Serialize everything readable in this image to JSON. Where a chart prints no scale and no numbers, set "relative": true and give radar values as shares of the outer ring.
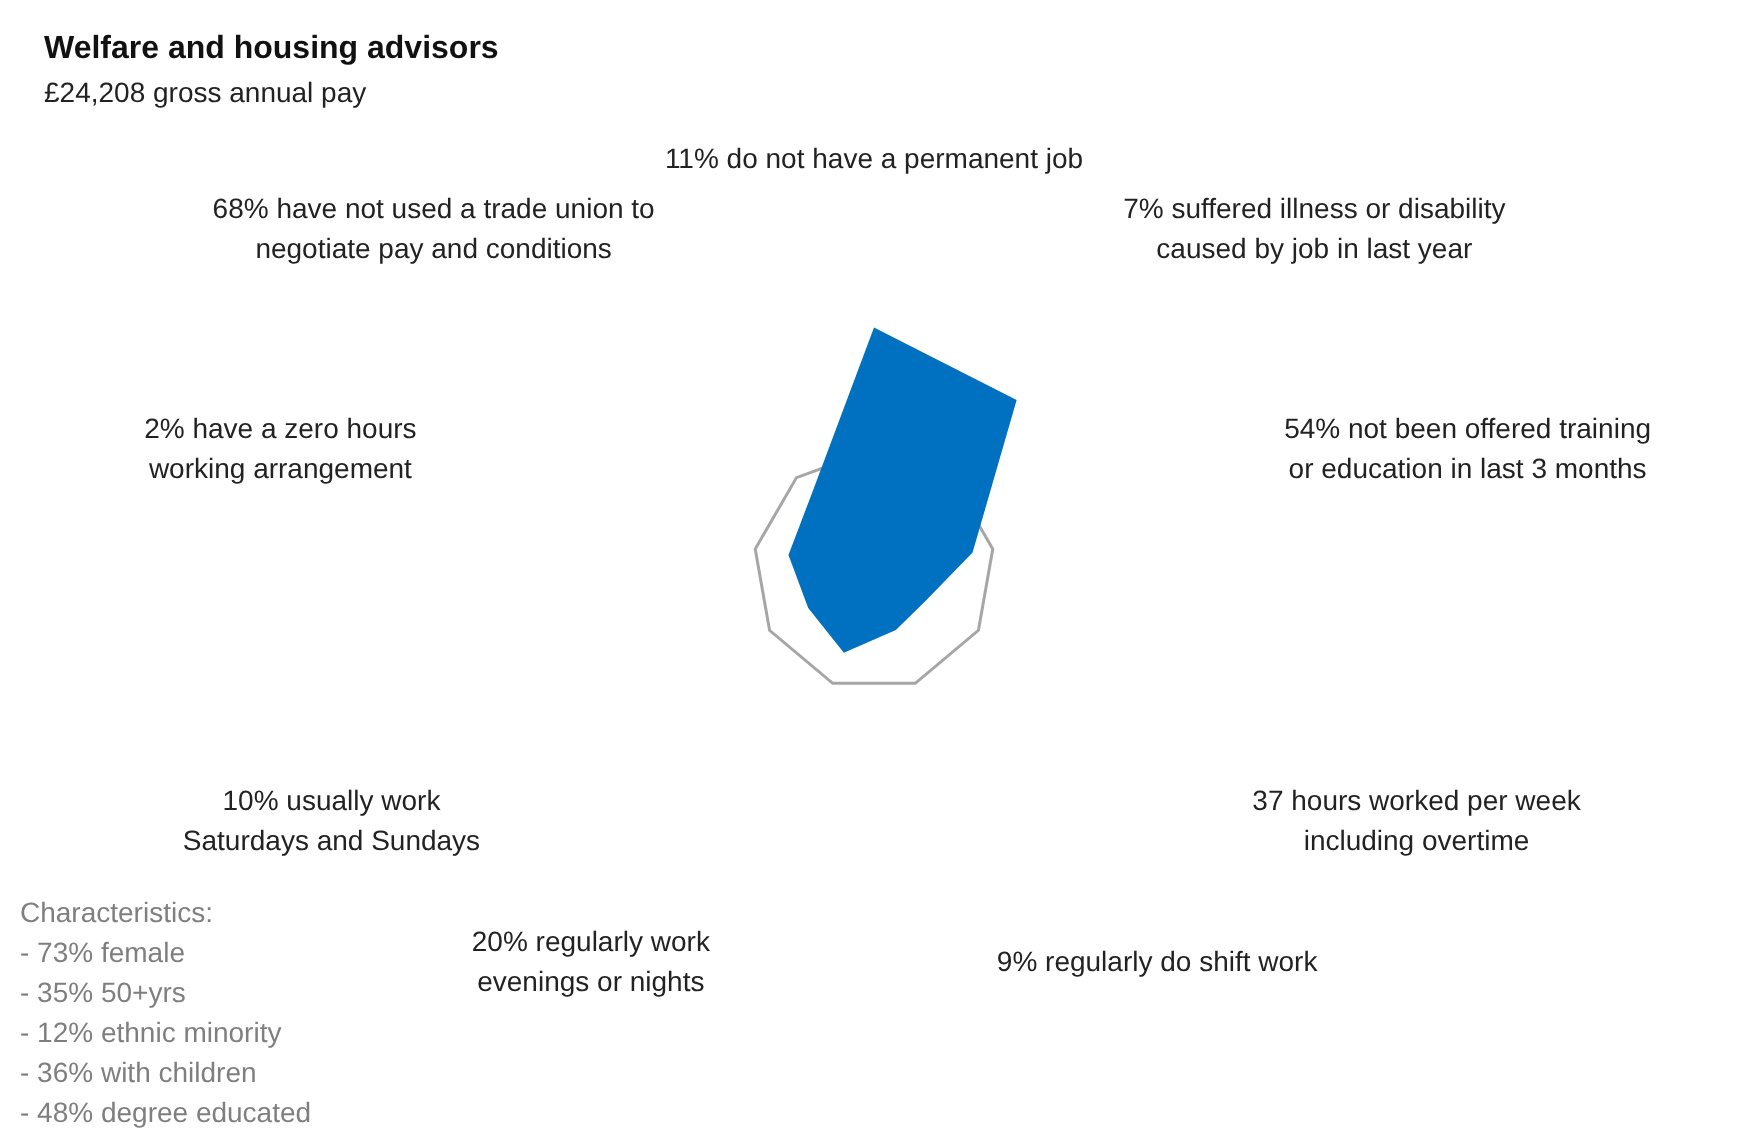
{
  "chart_data": {
    "type": "radar",
    "title": "Welfare and housing advisors",
    "subtitle": "£24,208 gross annual pay",
    "relative": true,
    "legend": false,
    "categories": [
      "11% do not have a permanent job",
      "7% suffered illness or disability\ncaused by job in last year",
      "54% not been offered training\nor education in last 3 months",
      "37 hours worked per week\nincluding overtime",
      "9% regularly do shift work",
      "20% regularly work\nevenings or nights",
      "10% usually work\nSaturdays and Sundays",
      "2% have a zero hours\nworking arrangement",
      "68% have not used a trade union to\nnegotiate pay and conditions"
    ],
    "grid": true,
    "series": [
      {
        "color": "#0070c0",
        "values": [
          2.01,
          1.84,
          0.83,
          0.5,
          0.53,
          0.73,
          0.63,
          0.72,
          0.81
        ]
      }
    ],
    "annotations": [
      "Characteristics:\n- 73% female\n- 35% 50+yrs\n- 12% ethnic minority\n- 36% with children\n- 48% degree educated"
    ]
  }
}
